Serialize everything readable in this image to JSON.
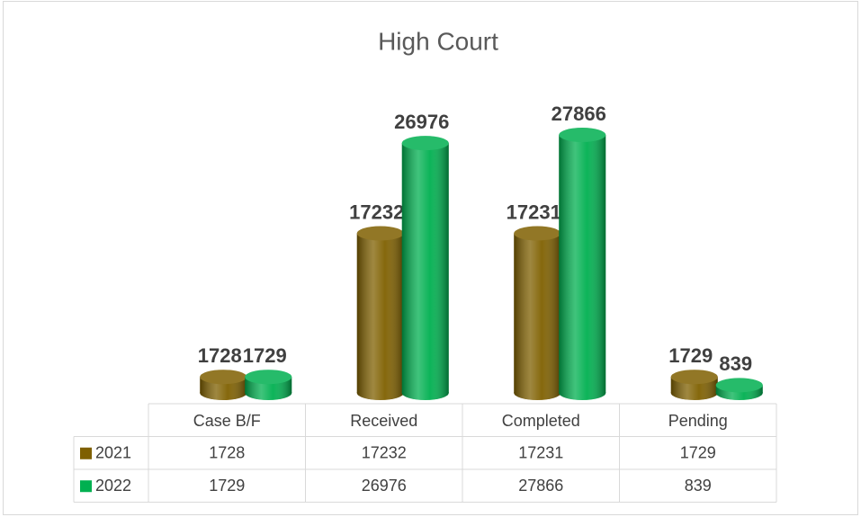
{
  "chart_data": {
    "type": "bar",
    "title": "High Court",
    "categories": [
      "Case B/F",
      "Received",
      "Completed",
      "Pending"
    ],
    "series": [
      {
        "name": "2021",
        "color": "#7f6000",
        "values": [
          1728,
          17232,
          17231,
          1729
        ]
      },
      {
        "name": "2022",
        "color": "#00b050",
        "values": [
          1729,
          26976,
          27866,
          839
        ]
      }
    ],
    "data_table": true
  }
}
